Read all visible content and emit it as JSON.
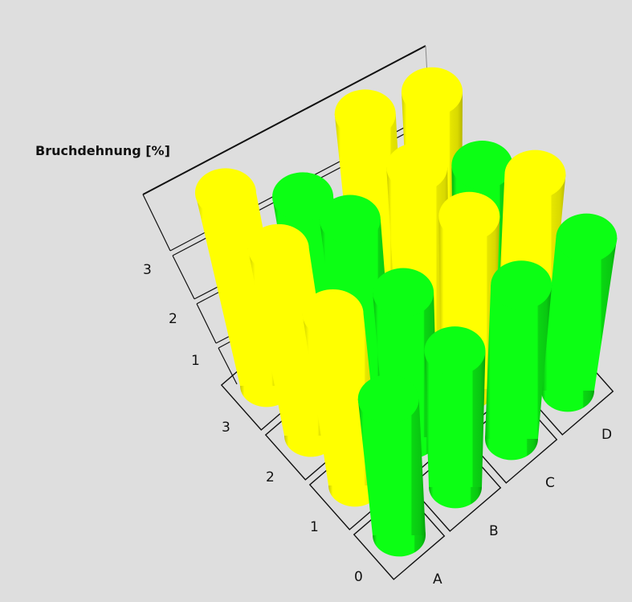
{
  "chart_data": {
    "type": "bar3d-cylinder",
    "zlabel": "Bruchdehnung [%]",
    "x_categories": [
      "A",
      "B",
      "C",
      "D"
    ],
    "y_categories": [
      "0",
      "1",
      "2",
      "3"
    ],
    "z_ticks": [
      "1",
      "2",
      "3"
    ],
    "zlim": [
      0,
      4
    ],
    "colors": {
      "yellow": "#ffff00",
      "green": "#0cff14"
    },
    "series": [
      {
        "row": "0",
        "values": [
          3.3,
          3.1,
          3.3,
          3.1
        ],
        "colors": [
          "green",
          "green",
          "green",
          "green"
        ]
      },
      {
        "row": "1",
        "values": [
          3.9,
          3.1,
          3.5,
          3.2
        ],
        "colors": [
          "yellow",
          "green",
          "yellow",
          "yellow"
        ]
      },
      {
        "row": "2",
        "values": [
          4.0,
          3.4,
          3.3,
          2.3
        ],
        "colors": [
          "yellow",
          "green",
          "yellow",
          "green"
        ]
      },
      {
        "row": "3",
        "values": [
          3.9,
          2.7,
          3.2,
          2.6
        ],
        "colors": [
          "yellow",
          "green",
          "yellow",
          "yellow"
        ]
      }
    ]
  }
}
